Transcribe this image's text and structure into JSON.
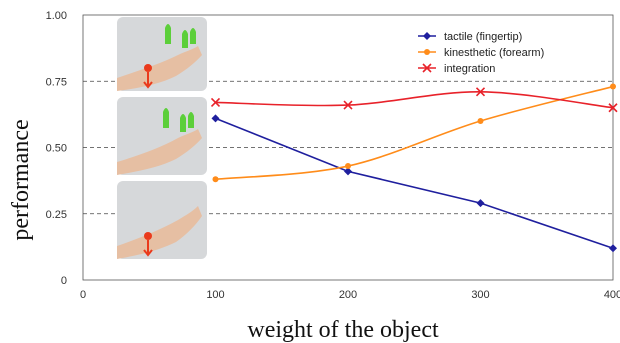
{
  "chart_data": {
    "type": "line",
    "xlabel": "weight of the object",
    "ylabel": "performance",
    "xlim": [
      0,
      400
    ],
    "ylim": [
      0,
      1
    ],
    "xticks": [
      "0",
      "100",
      "200",
      "300",
      "400"
    ],
    "yticks": [
      "0",
      "0.25",
      "0.50",
      "0.75",
      "1.00"
    ],
    "grid": "horizontal-dashed",
    "legend_position": "top-right",
    "x": [
      100,
      200,
      300,
      400
    ],
    "series": [
      {
        "name": "tactile (fingertip)",
        "color": "#1f1f9e",
        "marker": "diamond",
        "values": [
          0.61,
          0.41,
          0.29,
          0.12
        ]
      },
      {
        "name": "kinesthetic (forearm)",
        "color": "#ff8c1a",
        "marker": "circle",
        "values": [
          0.38,
          0.43,
          0.6,
          0.73
        ]
      },
      {
        "name": "integration",
        "color": "#e8222a",
        "marker": "cross",
        "values": [
          0.67,
          0.66,
          0.71,
          0.65
        ]
      }
    ],
    "inset_images": [
      {
        "icon": "hand-with-finger-and-forearm-stimulation-photo"
      },
      {
        "icon": "hand-with-finger-stimulation-photo"
      },
      {
        "icon": "hand-with-forearm-stimulation-photo"
      }
    ]
  }
}
